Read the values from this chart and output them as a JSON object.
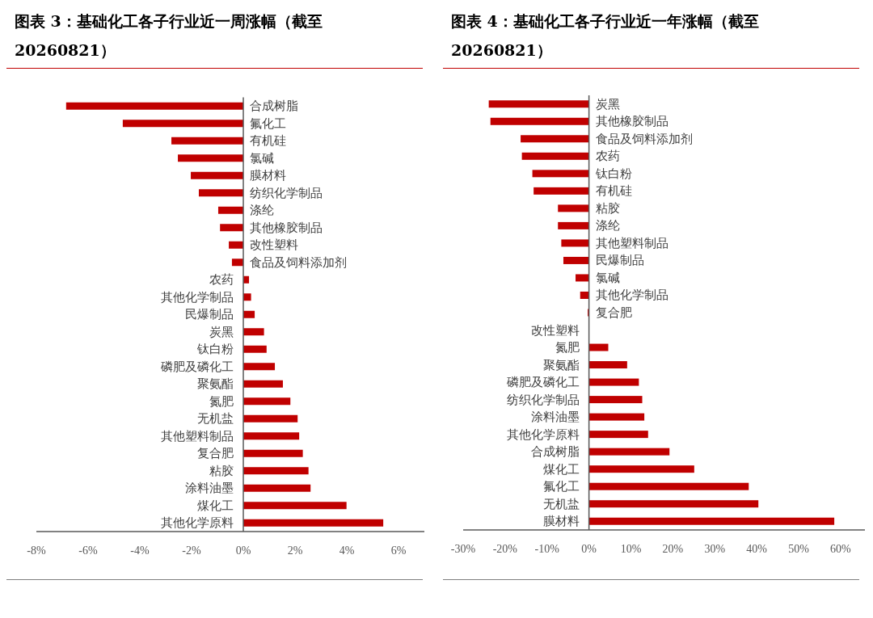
{
  "chart_data": [
    {
      "type": "bar",
      "orientation": "horizontal",
      "title": "图表 3：基础化工各子行业近一周涨幅（截至20260821）",
      "color": "#c00000",
      "categories": [
        "合成树脂",
        "氟化工",
        "有机硅",
        "氯碱",
        "膜材料",
        "纺织化学制品",
        "涤纶",
        "其他橡胶制品",
        "改性塑料",
        "食品及饲料添加剂",
        "农药",
        "其他化学制品",
        "民爆制品",
        "炭黑",
        "钛白粉",
        "磷肥及磷化工",
        "聚氨酯",
        "氮肥",
        "无机盐",
        "其他塑料制品",
        "复合肥",
        "粘胶",
        "涂料油墨",
        "煤化工",
        "其他化学原料"
      ],
      "values": [
        -6.85,
        -4.66,
        -2.78,
        -2.53,
        -2.03,
        -1.72,
        -0.97,
        -0.9,
        -0.56,
        -0.44,
        0.22,
        0.3,
        0.44,
        0.8,
        0.9,
        1.22,
        1.53,
        1.82,
        2.1,
        2.16,
        2.3,
        2.52,
        2.6,
        3.99,
        5.41
      ],
      "xlim": [
        -8,
        7
      ],
      "xticks": [
        {
          "value": -8,
          "label": "-8%"
        },
        {
          "value": -6,
          "label": "-6%"
        },
        {
          "value": -4,
          "label": "-4%"
        },
        {
          "value": -2,
          "label": "-2%"
        },
        {
          "value": 0,
          "label": "0%"
        },
        {
          "value": 2,
          "label": "2%"
        },
        {
          "value": 4,
          "label": "4%"
        },
        {
          "value": 6,
          "label": "6%"
        }
      ]
    },
    {
      "type": "bar",
      "orientation": "horizontal",
      "title": "图表 4：基础化工各子行业近一年涨幅（截至20260821）",
      "color": "#c00000",
      "categories": [
        "炭黑",
        "其他橡胶制品",
        "食品及饲料添加剂",
        "农药",
        "钛白粉",
        "有机硅",
        "粘胶",
        "涤纶",
        "其他塑料制品",
        "民爆制品",
        "氯碱",
        "其他化学制品",
        "复合肥",
        "改性塑料",
        "氮肥",
        "聚氨酯",
        "磷肥及磷化工",
        "纺织化学制品",
        "涂料油墨",
        "其他化学原料",
        "合成树脂",
        "煤化工",
        "氟化工",
        "无机盐",
        "膜材料"
      ],
      "values": [
        -23.9,
        -23.5,
        -16.3,
        -16.0,
        -13.5,
        -13.2,
        -7.4,
        -7.4,
        -6.6,
        -6.1,
        -3.2,
        -2.1,
        -0.3,
        0,
        4.6,
        9.1,
        11.9,
        12.7,
        13.2,
        14.1,
        19.2,
        25.1,
        38.1,
        40.4,
        58.5
      ],
      "xlim": [
        -30,
        66
      ],
      "xticks": [
        {
          "value": -30,
          "label": "-30%"
        },
        {
          "value": -20,
          "label": "-20%"
        },
        {
          "value": -10,
          "label": "-10%"
        },
        {
          "value": 0,
          "label": "0%"
        },
        {
          "value": 10,
          "label": "10%"
        },
        {
          "value": 20,
          "label": "20%"
        },
        {
          "value": 30,
          "label": "30%"
        },
        {
          "value": 40,
          "label": "40%"
        },
        {
          "value": 50,
          "label": "50%"
        },
        {
          "value": 60,
          "label": "60%"
        }
      ]
    }
  ]
}
